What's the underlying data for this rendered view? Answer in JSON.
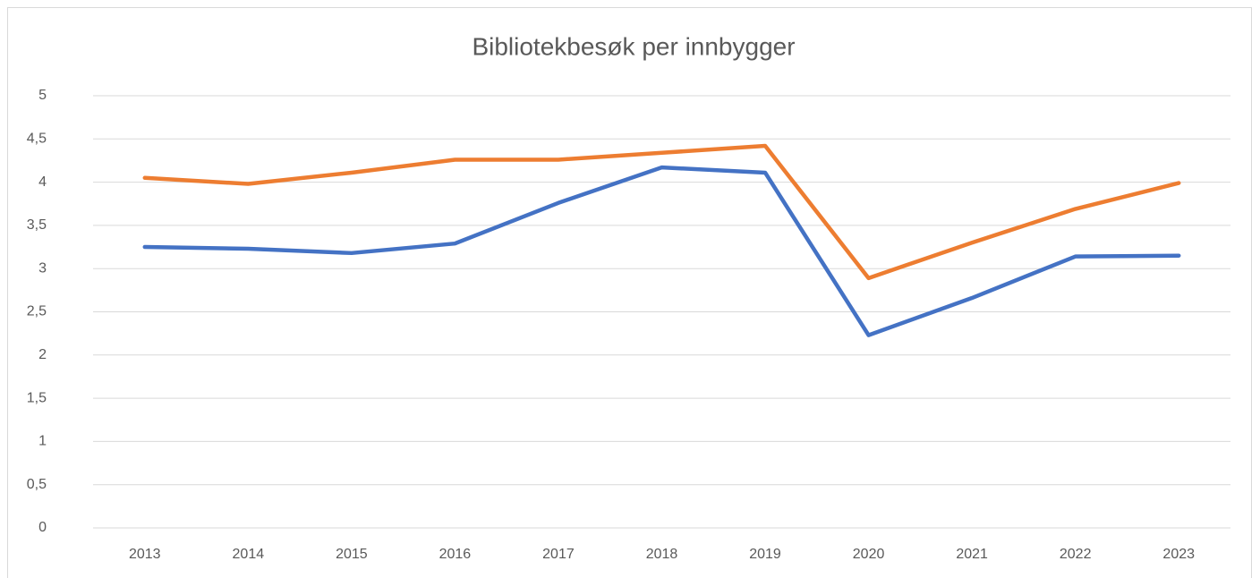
{
  "chart_data": {
    "type": "line",
    "title": "Bibliotekbesøk per innbygger",
    "categories": [
      "2013",
      "2014",
      "2015",
      "2016",
      "2017",
      "2018",
      "2019",
      "2020",
      "2021",
      "2022",
      "2023"
    ],
    "series": [
      {
        "color": "#4472c4",
        "values": [
          3.25,
          3.23,
          3.18,
          3.29,
          3.76,
          4.17,
          4.11,
          2.23,
          2.66,
          3.14,
          3.15
        ]
      },
      {
        "color": "#ed7d31",
        "values": [
          4.05,
          3.98,
          4.11,
          4.26,
          4.26,
          4.34,
          4.42,
          2.89,
          3.3,
          3.69,
          3.99
        ]
      }
    ],
    "ylim": [
      0,
      5
    ],
    "yticks": [
      0,
      {
        "value": 0.5,
        "label": "0,5"
      },
      1,
      {
        "value": 1.5,
        "label": "1,5"
      },
      2,
      {
        "value": 2.5,
        "label": "2,5"
      },
      3,
      {
        "value": 3.5,
        "label": "3,5"
      },
      4,
      {
        "value": 4.5,
        "label": "4,5"
      },
      5
    ],
    "grid": true
  }
}
